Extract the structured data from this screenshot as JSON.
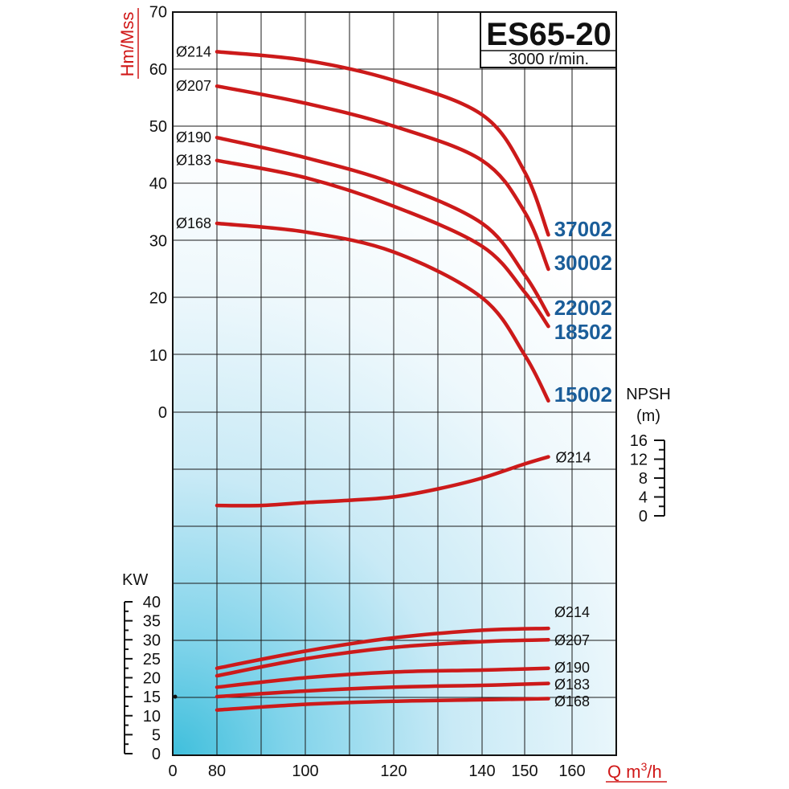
{
  "chart_data": {
    "type": "line",
    "title": "ES65-20",
    "subtitle": "3000 r/min.",
    "x_axis": {
      "label": "Q m",
      "label_sup": "3",
      "label_suffix": "/h",
      "ticks": [
        "0",
        "80",
        "100",
        "120",
        "140",
        "150",
        "160"
      ]
    },
    "head": {
      "ylabel": "Hm/Mss",
      "ylim": [
        0,
        70
      ],
      "ticks": [
        "0",
        "10",
        "20",
        "30",
        "40",
        "50",
        "60",
        "70"
      ],
      "series": [
        {
          "name": "Ø214",
          "motor": "37002",
          "x": [
            80,
            100,
            120,
            140,
            150,
            155
          ],
          "y": [
            63,
            61.5,
            58,
            52,
            42,
            31
          ]
        },
        {
          "name": "Ø207",
          "motor": "30002",
          "x": [
            80,
            100,
            120,
            140,
            150,
            155
          ],
          "y": [
            57,
            54,
            50,
            44,
            35,
            25
          ]
        },
        {
          "name": "Ø190",
          "motor": "22002",
          "x": [
            80,
            100,
            120,
            140,
            150,
            155
          ],
          "y": [
            48,
            44.5,
            40,
            33,
            24,
            17
          ]
        },
        {
          "name": "Ø183",
          "motor": "18502",
          "x": [
            80,
            100,
            120,
            140,
            150,
            155
          ],
          "y": [
            44,
            41,
            36,
            29,
            21,
            15
          ]
        },
        {
          "name": "Ø168",
          "motor": "15002",
          "x": [
            80,
            100,
            120,
            140,
            150,
            155
          ],
          "y": [
            33,
            31.5,
            28,
            20,
            10,
            2
          ]
        }
      ]
    },
    "npsh": {
      "ylabel": "NPSH",
      "unit": "(m)",
      "ylim": [
        0,
        16
      ],
      "ticks": [
        "0",
        "4",
        "8",
        "12",
        "16"
      ],
      "series": [
        {
          "name": "Ø214",
          "x": [
            80,
            90,
            100,
            110,
            120,
            130,
            140,
            150,
            155
          ],
          "y": [
            2.2,
            2.2,
            2.8,
            3.3,
            4,
            5.7,
            8,
            11,
            12.5
          ]
        }
      ]
    },
    "power": {
      "ylabel": "KW",
      "ylim": [
        0,
        40
      ],
      "ticks": [
        "0",
        "5",
        "10",
        "15",
        "20",
        "25",
        "30",
        "35",
        "40"
      ],
      "series": [
        {
          "name": "Ø214",
          "x": [
            80,
            100,
            120,
            140,
            155
          ],
          "y": [
            22.5,
            27,
            30.5,
            32.5,
            33
          ]
        },
        {
          "name": "Ø207",
          "x": [
            80,
            100,
            120,
            140,
            155
          ],
          "y": [
            20.5,
            25,
            28,
            29.5,
            30
          ]
        },
        {
          "name": "Ø190",
          "x": [
            80,
            100,
            120,
            140,
            155
          ],
          "y": [
            17.5,
            20,
            21.5,
            22,
            22.5
          ]
        },
        {
          "name": "Ø183",
          "x": [
            80,
            100,
            120,
            140,
            155
          ],
          "y": [
            15,
            16.5,
            17.5,
            18,
            18.5
          ]
        },
        {
          "name": "Ø168",
          "x": [
            80,
            100,
            120,
            140,
            155
          ],
          "y": [
            11.5,
            13,
            13.8,
            14.2,
            14.5
          ]
        }
      ]
    },
    "grid": true,
    "colors": {
      "curve": "#cc1a1a",
      "motor_label": "#1a5d99",
      "axis_title": "#d01818"
    }
  }
}
